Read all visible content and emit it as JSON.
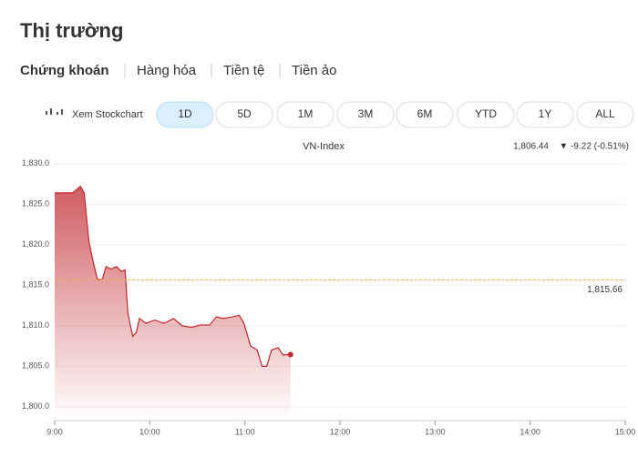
{
  "header": {
    "title": "Thị trường",
    "tabs": [
      "Chứng khoán",
      "Hàng hóa",
      "Tiền tệ",
      "Tiền ảo"
    ]
  },
  "toolbar": {
    "link": "Xem Stockchart",
    "ranges": [
      "1D",
      "5D",
      "1M",
      "3M",
      "6M",
      "YTD",
      "1Y",
      "ALL"
    ]
  },
  "chart_data": {
    "type": "line",
    "title": "VN-Index",
    "last": {
      "value": 1806.44,
      "label": "1,806.44"
    },
    "change": "▼ -9.22 (-0.51%)",
    "reference": {
      "value": 1815.66,
      "label": "1,815.66",
      "color": "#e8b84a"
    },
    "x": [
      9.0,
      9.19,
      9.27,
      9.31,
      9.36,
      9.41,
      9.45,
      9.5,
      9.54,
      9.59,
      9.65,
      9.7,
      9.74,
      9.77,
      9.82,
      9.86,
      9.89,
      9.96,
      10.05,
      10.15,
      10.25,
      10.34,
      10.44,
      10.53,
      10.63,
      10.7,
      10.77,
      10.87,
      10.94,
      10.99,
      11.06,
      11.13,
      11.18,
      11.23,
      11.28,
      11.35,
      11.4,
      11.48
    ],
    "series": [
      {
        "name": "VN-Index",
        "color": "#c0272d",
        "values": [
          1826.4,
          1826.4,
          1827.2,
          1826.4,
          1820.4,
          1817.6,
          1815.7,
          1815.7,
          1817.3,
          1817.0,
          1817.3,
          1816.7,
          1816.9,
          1811.5,
          1808.7,
          1809.2,
          1810.9,
          1810.3,
          1810.7,
          1810.3,
          1810.9,
          1810.0,
          1809.8,
          1810.1,
          1810.1,
          1811.1,
          1810.9,
          1811.1,
          1811.3,
          1810.3,
          1807.5,
          1807.0,
          1805.0,
          1805.0,
          1807.0,
          1807.3,
          1806.4,
          1806.44
        ]
      }
    ],
    "xlim": [
      9,
      15
    ],
    "xticks": [
      {
        "value": 9,
        "label": "9:00"
      },
      {
        "value": 10,
        "label": "10:00"
      },
      {
        "value": 11,
        "label": "11:00"
      },
      {
        "value": 12,
        "label": "12:00"
      },
      {
        "value": 13,
        "label": "13:00"
      },
      {
        "value": 14,
        "label": "14:00"
      },
      {
        "value": 15,
        "label": "15:00"
      }
    ],
    "ylim": [
      1798.3,
      1831.1
    ],
    "yticks": [
      {
        "value": 1800,
        "label": "1,800.0"
      },
      {
        "value": 1805,
        "label": "1,805.0"
      },
      {
        "value": 1810,
        "label": "1,810.0"
      },
      {
        "value": 1815,
        "label": "1,815.0"
      },
      {
        "value": 1820,
        "label": "1,820.0"
      },
      {
        "value": 1825,
        "label": "1,825.0"
      },
      {
        "value": 1830,
        "label": "1,830.0"
      }
    ],
    "grid": true
  }
}
